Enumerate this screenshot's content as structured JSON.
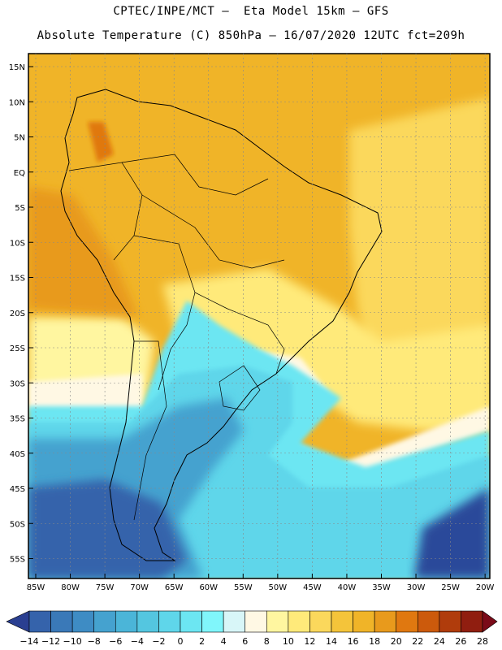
{
  "header": {
    "line1": "CPTEC/INPE/MCT –  Eta Model 15km – GFS",
    "line2": "Absolute Temperature (C) 850hPa – 16/07/2020 12UTC fct=209h"
  },
  "map": {
    "lat_labels": [
      "15N",
      "10N",
      "5N",
      "EQ",
      "5S",
      "10S",
      "15S",
      "20S",
      "25S",
      "30S",
      "35S",
      "40S",
      "45S",
      "50S",
      "55S"
    ],
    "lon_labels": [
      "85W",
      "80W",
      "75W",
      "70W",
      "65W",
      "60W",
      "55W",
      "50W",
      "45W",
      "40W",
      "35W",
      "30W",
      "25W",
      "20W"
    ],
    "background_color": "#f0b428"
  },
  "colorbar": {
    "tick_labels": [
      "-14",
      "-12",
      "-10",
      "-8",
      "-6",
      "-4",
      "-2",
      "0",
      "2",
      "4",
      "6",
      "8",
      "10",
      "12",
      "14",
      "16",
      "18",
      "20",
      "22",
      "24",
      "26",
      "28"
    ],
    "low_arrow_color": "#2a3f91",
    "high_arrow_color": "#7a0a18",
    "colors": [
      "#2b4a9a",
      "#3563ab",
      "#3a79b8",
      "#3e8cc4",
      "#45a2cf",
      "#4bb5d8",
      "#54c6e0",
      "#5fd6ea",
      "#6ce6f2",
      "#80f6fb",
      "#d8f6f8",
      "#fff8e4",
      "#fff6a0",
      "#ffea7a",
      "#fbd85c",
      "#f4c43a",
      "#f0b428",
      "#e89a1c",
      "#e07810",
      "#cc5a0c",
      "#b03c0c",
      "#901e10",
      "#6e1010"
    ]
  }
}
